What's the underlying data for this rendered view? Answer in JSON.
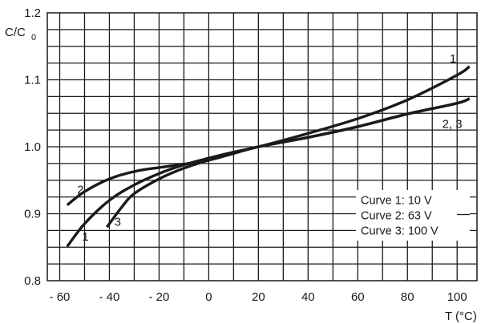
{
  "chart_data": {
    "type": "line",
    "ylabel_main": "C/C",
    "ylabel_sub": "0",
    "xlabel": "T (°C)",
    "xlim": [
      -65,
      108
    ],
    "ylim": [
      0.8,
      1.2
    ],
    "grid": true,
    "x_tick_labels": [
      {
        "value": -60,
        "text": "- 60"
      },
      {
        "value": -40,
        "text": "- 40"
      },
      {
        "value": -20,
        "text": "- 20"
      },
      {
        "value": 0,
        "text": "0"
      },
      {
        "value": 20,
        "text": "20"
      },
      {
        "value": 40,
        "text": "40"
      },
      {
        "value": 60,
        "text": "60"
      },
      {
        "value": 80,
        "text": "80"
      },
      {
        "value": 100,
        "text": "100"
      }
    ],
    "y_tick_labels": [
      {
        "value": 0.8,
        "text": "0.8"
      },
      {
        "value": 0.9,
        "text": "0.9"
      },
      {
        "value": 1.0,
        "text": "1.0"
      },
      {
        "value": 1.1,
        "text": "1.1"
      },
      {
        "value": 1.2,
        "text": "1.2"
      }
    ],
    "series": [
      {
        "name": "1",
        "points": [
          [
            -57,
            0.851
          ],
          [
            -50,
            0.885
          ],
          [
            -40,
            0.92
          ],
          [
            -30,
            0.943
          ],
          [
            -20,
            0.96
          ],
          [
            -10,
            0.973
          ],
          [
            0,
            0.983
          ],
          [
            10,
            0.992
          ],
          [
            20,
            1.0
          ],
          [
            40,
            1.02
          ],
          [
            60,
            1.042
          ],
          [
            80,
            1.07
          ],
          [
            100,
            1.107
          ],
          [
            105,
            1.12
          ]
        ]
      },
      {
        "name": "2",
        "points": [
          [
            -57,
            0.913
          ],
          [
            -50,
            0.933
          ],
          [
            -40,
            0.952
          ],
          [
            -30,
            0.963
          ],
          [
            -20,
            0.969
          ],
          [
            -10,
            0.974
          ],
          [
            0,
            0.98
          ],
          [
            10,
            0.99
          ],
          [
            20,
            1.0
          ],
          [
            40,
            1.014
          ],
          [
            60,
            1.03
          ],
          [
            80,
            1.049
          ],
          [
            100,
            1.065
          ],
          [
            105,
            1.072
          ]
        ]
      },
      {
        "name": "3",
        "points": [
          [
            -41,
            0.88
          ],
          [
            -35,
            0.91
          ],
          [
            -30,
            0.93
          ],
          [
            -20,
            0.952
          ],
          [
            -10,
            0.968
          ],
          [
            0,
            0.98
          ],
          [
            10,
            0.99
          ],
          [
            20,
            1.0
          ],
          [
            40,
            1.014
          ],
          [
            60,
            1.03
          ],
          [
            80,
            1.049
          ],
          [
            100,
            1.065
          ],
          [
            105,
            1.072
          ]
        ]
      }
    ],
    "curve_labels": [
      {
        "text": "1",
        "x": 97,
        "y": 1.126
      },
      {
        "text": "2, 3",
        "x": 94,
        "y": 1.028
      },
      {
        "text": "2",
        "x": -53,
        "y": 0.93
      },
      {
        "text": "1",
        "x": -51,
        "y": 0.86
      },
      {
        "text": "3",
        "x": -38,
        "y": 0.882
      }
    ],
    "legend": {
      "position": "bottom-right",
      "entries": [
        "Curve 1:   10 V",
        "Curve 2:   63 V",
        "Curve 3: 100 V"
      ]
    }
  }
}
